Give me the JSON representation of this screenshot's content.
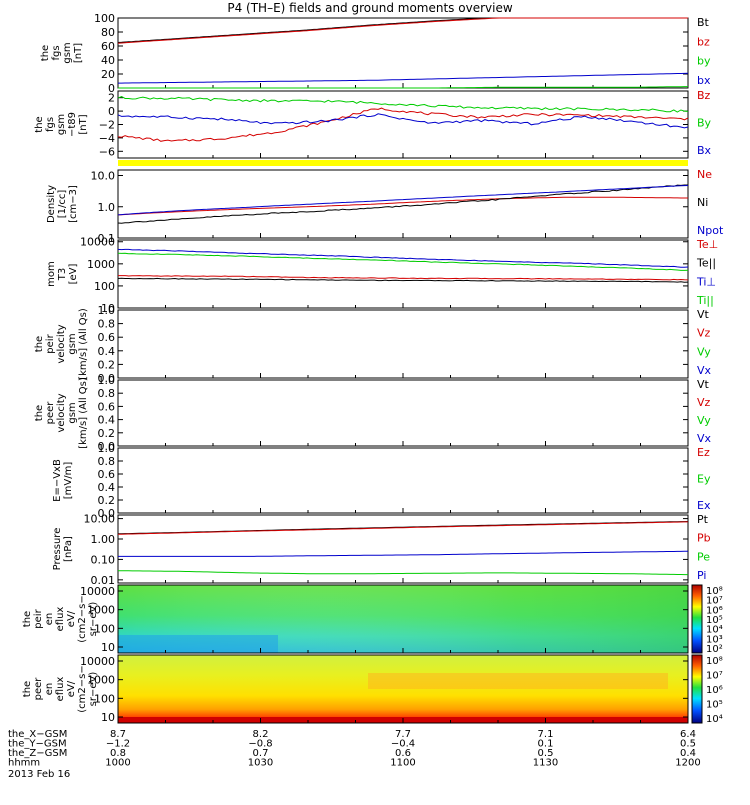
{
  "title": "P4 (TH–E) fields and ground moments overview",
  "chart_data": [
    {
      "id": "fgs-gsm",
      "type": "line",
      "ylabel": [
        "the",
        "fgs",
        "gsm",
        "[nT]"
      ],
      "yticks": [
        "100",
        "80",
        "60",
        "40",
        "20",
        "0"
      ],
      "ylim": [
        0,
        100
      ],
      "series": [
        {
          "name": "Bt",
          "color": "#000000",
          "values": [
            65,
            71,
            77,
            83,
            90,
            96,
            101,
            105,
            108,
            110
          ]
        },
        {
          "name": "bz",
          "color": "#d40000",
          "values": [
            64,
            70,
            76,
            82,
            89,
            95,
            100,
            104,
            107,
            109
          ]
        },
        {
          "name": "by",
          "color": "#00cc00",
          "values": [
            0,
            0,
            0,
            0,
            0,
            0,
            1,
            1,
            1,
            2
          ]
        },
        {
          "name": "bx",
          "color": "#0000cc",
          "values": [
            7,
            8,
            9,
            10,
            11,
            13,
            15,
            17,
            19,
            21
          ]
        }
      ]
    },
    {
      "id": "fgs-gsm-dt89",
      "type": "line",
      "ylabel": [
        "the",
        "fgs",
        "gsm",
        "−t89",
        "[nT]"
      ],
      "yticks": [
        "2",
        "0",
        "−2",
        "−4",
        "−6"
      ],
      "ylim": [
        -7,
        3
      ],
      "series": [
        {
          "name": "Bz",
          "color": "#d40000",
          "values": [
            -3.7,
            -4.5,
            -4.1,
            -3.2,
            -1.6,
            0.4,
            -0.4,
            -0.9,
            -0.5,
            -0.6,
            -0.9,
            -1.2
          ]
        },
        {
          "name": "By",
          "color": "#00cc00",
          "values": [
            2.0,
            1.9,
            1.7,
            1.5,
            1.5,
            1.2,
            0.8,
            0.5,
            0.4,
            0.3,
            0.2,
            0.0
          ]
        },
        {
          "name": "Bx",
          "color": "#0000cc",
          "values": [
            -0.7,
            -0.9,
            -1.2,
            -1.9,
            -1.5,
            -0.5,
            -1.8,
            -1.4,
            -1.9,
            -0.8,
            -1.6,
            -2.5
          ]
        }
      ]
    },
    {
      "id": "density",
      "type": "line",
      "scale": "log",
      "ylabel": [
        "Density",
        "[1/cc]",
        "[cm−3]"
      ],
      "yticks": [
        "10.0",
        "1.0",
        "0.1"
      ],
      "ylim": [
        0.1,
        15
      ],
      "series": [
        {
          "name": "Ne",
          "color": "#d40000",
          "values": [
            0.55,
            0.7,
            0.85,
            1.0,
            1.2,
            1.5,
            1.8,
            2.0,
            2.0,
            1.9
          ]
        },
        {
          "name": "Ni",
          "color": "#000000",
          "values": [
            0.3,
            0.4,
            0.55,
            0.7,
            0.9,
            1.2,
            1.7,
            2.5,
            3.5,
            5.0
          ]
        },
        {
          "name": "Npot",
          "color": "#0000cc",
          "values": [
            0.55,
            0.75,
            0.95,
            1.2,
            1.5,
            1.9,
            2.4,
            3.0,
            3.8,
            4.8
          ]
        }
      ]
    },
    {
      "id": "temperature",
      "type": "line",
      "scale": "log",
      "ylabel": [
        "mom",
        "T3",
        "[eV]"
      ],
      "yticks": [
        "10000",
        "1000",
        "100",
        "10"
      ],
      "ylim": [
        10,
        12000
      ],
      "series": [
        {
          "name": "Te⊥",
          "color": "#d40000",
          "values": [
            290,
            280,
            270,
            240,
            230,
            220,
            215,
            210,
            200,
            190
          ]
        },
        {
          "name": "Te||",
          "color": "#000000",
          "values": [
            220,
            210,
            200,
            190,
            180,
            175,
            170,
            165,
            160,
            150
          ]
        },
        {
          "name": "Ti⊥",
          "color": "#0000cc",
          "values": [
            4500,
            3800,
            3000,
            2500,
            2000,
            1600,
            1300,
            1100,
            900,
            700
          ]
        },
        {
          "name": "Ti||",
          "color": "#00cc00",
          "values": [
            3000,
            2600,
            2200,
            1800,
            1500,
            1200,
            1000,
            800,
            650,
            500
          ]
        }
      ]
    },
    {
      "id": "peir-velocity",
      "type": "line",
      "ylabel": [
        "the",
        "peir",
        "velocity",
        "gsm",
        "[km/s] (All Qs)"
      ],
      "yticks": [
        "1.0",
        "0.8",
        "0.6",
        "0.4",
        "0.2",
        "0.0"
      ],
      "ylim": [
        0,
        1
      ],
      "series": [
        {
          "name": "Vt",
          "color": "#000000",
          "values": []
        },
        {
          "name": "Vz",
          "color": "#d40000",
          "values": []
        },
        {
          "name": "Vy",
          "color": "#00cc00",
          "values": []
        },
        {
          "name": "Vx",
          "color": "#0000cc",
          "values": []
        }
      ]
    },
    {
      "id": "peer-velocity",
      "type": "line",
      "ylabel": [
        "the",
        "peer",
        "velocity",
        "gsm",
        "[km/s] (All Qs)"
      ],
      "yticks": [
        "1.0",
        "0.8",
        "0.6",
        "0.4",
        "0.2",
        "0.0"
      ],
      "ylim": [
        0,
        1
      ],
      "series": [
        {
          "name": "Vt",
          "color": "#000000",
          "values": []
        },
        {
          "name": "Vz",
          "color": "#d40000",
          "values": []
        },
        {
          "name": "Vy",
          "color": "#00cc00",
          "values": []
        },
        {
          "name": "Vx",
          "color": "#0000cc",
          "values": []
        }
      ]
    },
    {
      "id": "efield",
      "type": "line",
      "ylabel": [
        "E=−VxB",
        "[mV/m]"
      ],
      "yticks": [
        "1.0",
        "0.8",
        "0.6",
        "0.4",
        "0.2",
        "0.0"
      ],
      "ylim": [
        0,
        1
      ],
      "series": [
        {
          "name": "Ez",
          "color": "#d40000",
          "values": []
        },
        {
          "name": "Ey",
          "color": "#00cc00",
          "values": []
        },
        {
          "name": "Ex",
          "color": "#0000cc",
          "values": []
        }
      ]
    },
    {
      "id": "pressure",
      "type": "line",
      "scale": "log",
      "ylabel": [
        "Pressure",
        "[nPa]"
      ],
      "yticks": [
        "10.00",
        "1.00",
        "0.10",
        "0.01"
      ],
      "ylim": [
        0.007,
        15
      ],
      "series": [
        {
          "name": "Pt",
          "color": "#000000",
          "values": [
            1.8,
            2.1,
            2.5,
            3.0,
            3.5,
            4.1,
            4.8,
            5.5,
            6.3,
            7.2
          ]
        },
        {
          "name": "Pb",
          "color": "#d40000",
          "values": [
            1.7,
            2.0,
            2.4,
            2.8,
            3.3,
            3.9,
            4.5,
            5.2,
            6.0,
            6.9
          ]
        },
        {
          "name": "Pe",
          "color": "#00cc00",
          "values": [
            0.028,
            0.026,
            0.022,
            0.02,
            0.02,
            0.021,
            0.022,
            0.021,
            0.02,
            0.018
          ]
        },
        {
          "name": "Pi",
          "color": "#0000cc",
          "values": [
            0.14,
            0.14,
            0.14,
            0.15,
            0.16,
            0.17,
            0.19,
            0.21,
            0.23,
            0.25
          ]
        }
      ]
    },
    {
      "id": "peir-eflux",
      "type": "heatmap",
      "ylabel": [
        "the",
        "peir",
        "en",
        "eflux",
        "eV/",
        "(cm2−s−",
        "sr−eV)"
      ],
      "yticks": [
        "10000",
        "1000",
        "100",
        "10"
      ],
      "colorbar_ticks": [
        "10⁸",
        "10⁷",
        "10⁶",
        "10⁵",
        "10⁴",
        "10³",
        "10²"
      ]
    },
    {
      "id": "peer-eflux",
      "type": "heatmap",
      "ylabel": [
        "the",
        "peer",
        "en",
        "eflux",
        "eV/",
        "(cm2−s−",
        "sr−eV)"
      ],
      "yticks": [
        "10000",
        "1000",
        "100",
        "10"
      ],
      "colorbar_ticks": [
        "10⁸",
        "10⁷",
        "10⁶",
        "10⁵",
        "10⁴"
      ]
    }
  ],
  "footer": {
    "rows": [
      {
        "label": "the_X−GSM",
        "values": [
          "8.7",
          "8.2",
          "7.7",
          "7.1",
          "6.4"
        ]
      },
      {
        "label": "the_Y−GSM",
        "values": [
          "−1.2",
          "−0.8",
          "−0.4",
          "0.1",
          "0.5"
        ]
      },
      {
        "label": "the_Z−GSM",
        "values": [
          "0.8",
          "0.7",
          "0.6",
          "0.5",
          "0.4"
        ]
      },
      {
        "label": "hhmm",
        "values": [
          "1000",
          "1030",
          "1100",
          "1130",
          "1200"
        ]
      }
    ],
    "date": "2013 Feb 16"
  },
  "colors": {
    "yellow_bar": "#ffff00",
    "axis": "#000000"
  }
}
